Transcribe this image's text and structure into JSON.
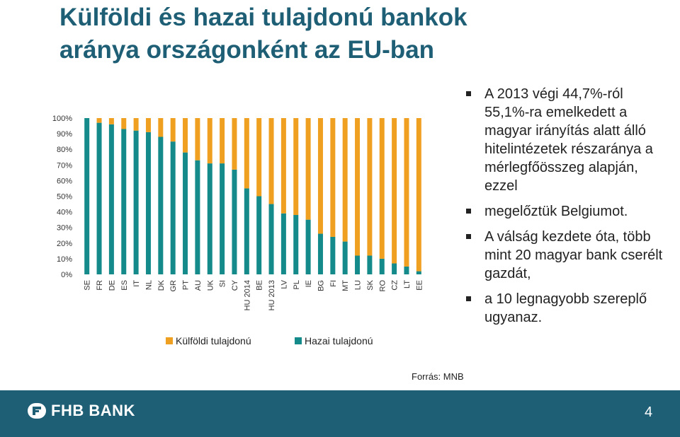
{
  "slide": {
    "title_line1": "Külföldi és hazai tulajdonú bankok",
    "title_line2": "aránya országonként az EU-ban",
    "source": "Forrás: MNB",
    "page_number": "4",
    "footer_logo": "FHB BANK",
    "bullets": [
      "A 2013 végi 44,7%-ról 55,1%-ra emelkedett a magyar irányítás alatt álló hitelintézetek részaránya a mérlegfőösszeg alapján, ezzel",
      "megelőztük Belgiumot.",
      "A válság kezdete óta, több mint 20 magyar bank cserélt gazdát,",
      "a 10 legnagyobb szereplő ugyanaz."
    ],
    "colors": {
      "title": "#1f5f76",
      "foreign": "#f0a020",
      "domestic": "#148a8a",
      "footer": "#1f5f76"
    }
  },
  "chart_data": {
    "type": "bar",
    "stacked": true,
    "categories": [
      "SE",
      "FR",
      "DE",
      "ES",
      "IT",
      "NL",
      "DK",
      "GR",
      "PT",
      "AU",
      "UK",
      "SI",
      "CY",
      "HU 2014",
      "BE",
      "HU 2013",
      "LV",
      "PL",
      "IE",
      "BG",
      "FI",
      "MT",
      "LU",
      "SK",
      "RO",
      "CZ",
      "LT",
      "EE"
    ],
    "series": [
      {
        "name": "Hazai tulajdonú",
        "color": "#148a8a",
        "values": [
          100,
          97,
          96,
          93,
          92,
          91,
          88,
          85,
          78,
          73,
          71,
          71,
          67,
          55,
          50,
          45,
          39,
          38,
          35,
          26,
          24,
          21,
          12,
          12,
          10,
          7,
          5,
          2
        ]
      },
      {
        "name": "Külföldi tulajdonú",
        "color": "#f0a020",
        "values": [
          0,
          3,
          4,
          7,
          8,
          9,
          12,
          15,
          22,
          27,
          29,
          29,
          33,
          45,
          50,
          55,
          61,
          62,
          65,
          74,
          76,
          79,
          88,
          88,
          90,
          93,
          95,
          98
        ]
      }
    ],
    "yticks": [
      "0%",
      "10%",
      "20%",
      "30%",
      "40%",
      "50%",
      "60%",
      "70%",
      "80%",
      "90%",
      "100%"
    ],
    "ylim": [
      0,
      100
    ],
    "grid": false,
    "legend_position": "bottom"
  }
}
